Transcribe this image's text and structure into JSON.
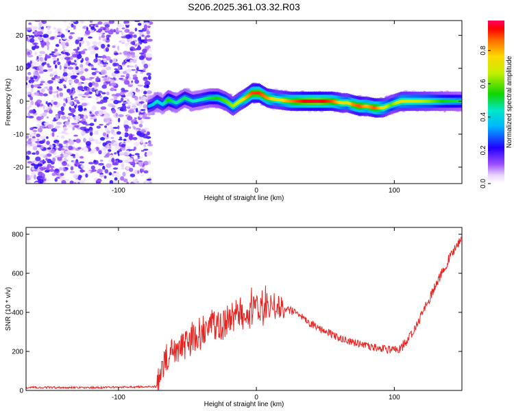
{
  "title": "S206.2025.361.03.32.R03",
  "chart_data": [
    {
      "type": "heatmap",
      "xlabel": "Height of straight line (km)",
      "ylabel": "Frequency (Hz)",
      "xlim": [
        -167,
        149
      ],
      "ylim": [
        -25,
        24.5
      ],
      "x_ticks": [
        -100,
        0,
        100
      ],
      "y_ticks": [
        -20,
        -10,
        0,
        10,
        20
      ],
      "grid": false,
      "colorbar": {
        "label": "Normalized spectral amplitude",
        "range": [
          0,
          0.98
        ],
        "ticks": [
          0.0,
          0.2,
          0.4,
          0.6,
          0.8
        ]
      },
      "noise_region_x": [
        -167,
        -77
      ],
      "ridge_x": [
        -78,
        -75,
        -72,
        -68,
        -64,
        -58,
        -52,
        -46,
        -40,
        -34,
        -28,
        -22,
        -17,
        -12,
        -8,
        -3,
        2,
        8,
        15,
        25,
        35,
        45,
        55,
        62,
        66,
        70,
        75,
        80,
        86,
        92,
        98,
        105,
        115,
        125,
        135,
        149
      ],
      "ridge_freq_hz": [
        -1.5,
        -1,
        0,
        -1,
        0.5,
        -0.5,
        1,
        0,
        0.5,
        1,
        1,
        0,
        -1.5,
        0,
        1,
        2.5,
        2.5,
        1,
        0.5,
        0,
        0,
        0,
        0,
        -0.5,
        -0.5,
        -1,
        -1.5,
        -1.5,
        -2,
        -2,
        -1,
        0,
        0,
        0,
        0,
        0
      ],
      "ridge_amplitude": [
        0.35,
        0.4,
        0.45,
        0.4,
        0.55,
        0.45,
        0.5,
        0.45,
        0.45,
        0.5,
        0.55,
        0.6,
        0.65,
        0.7,
        0.8,
        0.9,
        0.92,
        0.85,
        0.7,
        0.85,
        0.95,
        0.98,
        0.9,
        0.75,
        0.7,
        0.85,
        0.9,
        0.8,
        0.9,
        0.75,
        0.6,
        0.75,
        0.7,
        0.65,
        0.55,
        0.5
      ]
    },
    {
      "type": "line",
      "xlabel": "Height of straight line (km)",
      "ylabel": "SNR (10 * v/v)",
      "xlim": [
        -167,
        149
      ],
      "ylim": [
        0,
        835
      ],
      "x_ticks": [
        -100,
        0,
        100
      ],
      "y_ticks": [
        0,
        200,
        400,
        600,
        800
      ],
      "grid": false,
      "series": [
        {
          "color": "#e8231f",
          "x": [
            -167,
            -140,
            -110,
            -90,
            -72,
            -68,
            -64,
            -58,
            -52,
            -46,
            -40,
            -35,
            -30,
            -25,
            -20,
            -15,
            -10,
            -5,
            0,
            5,
            10,
            15,
            20,
            25,
            30,
            40,
            50,
            60,
            70,
            80,
            90,
            95,
            100,
            105,
            110,
            115,
            120,
            125,
            130,
            135,
            140,
            145,
            149
          ],
          "y": [
            15,
            15,
            15,
            18,
            20,
            120,
            180,
            220,
            250,
            260,
            290,
            320,
            330,
            320,
            360,
            380,
            400,
            390,
            420,
            420,
            430,
            420,
            420,
            410,
            390,
            340,
            300,
            270,
            245,
            230,
            215,
            210,
            205,
            220,
            260,
            320,
            390,
            460,
            540,
            610,
            680,
            740,
            780
          ]
        }
      ]
    }
  ]
}
